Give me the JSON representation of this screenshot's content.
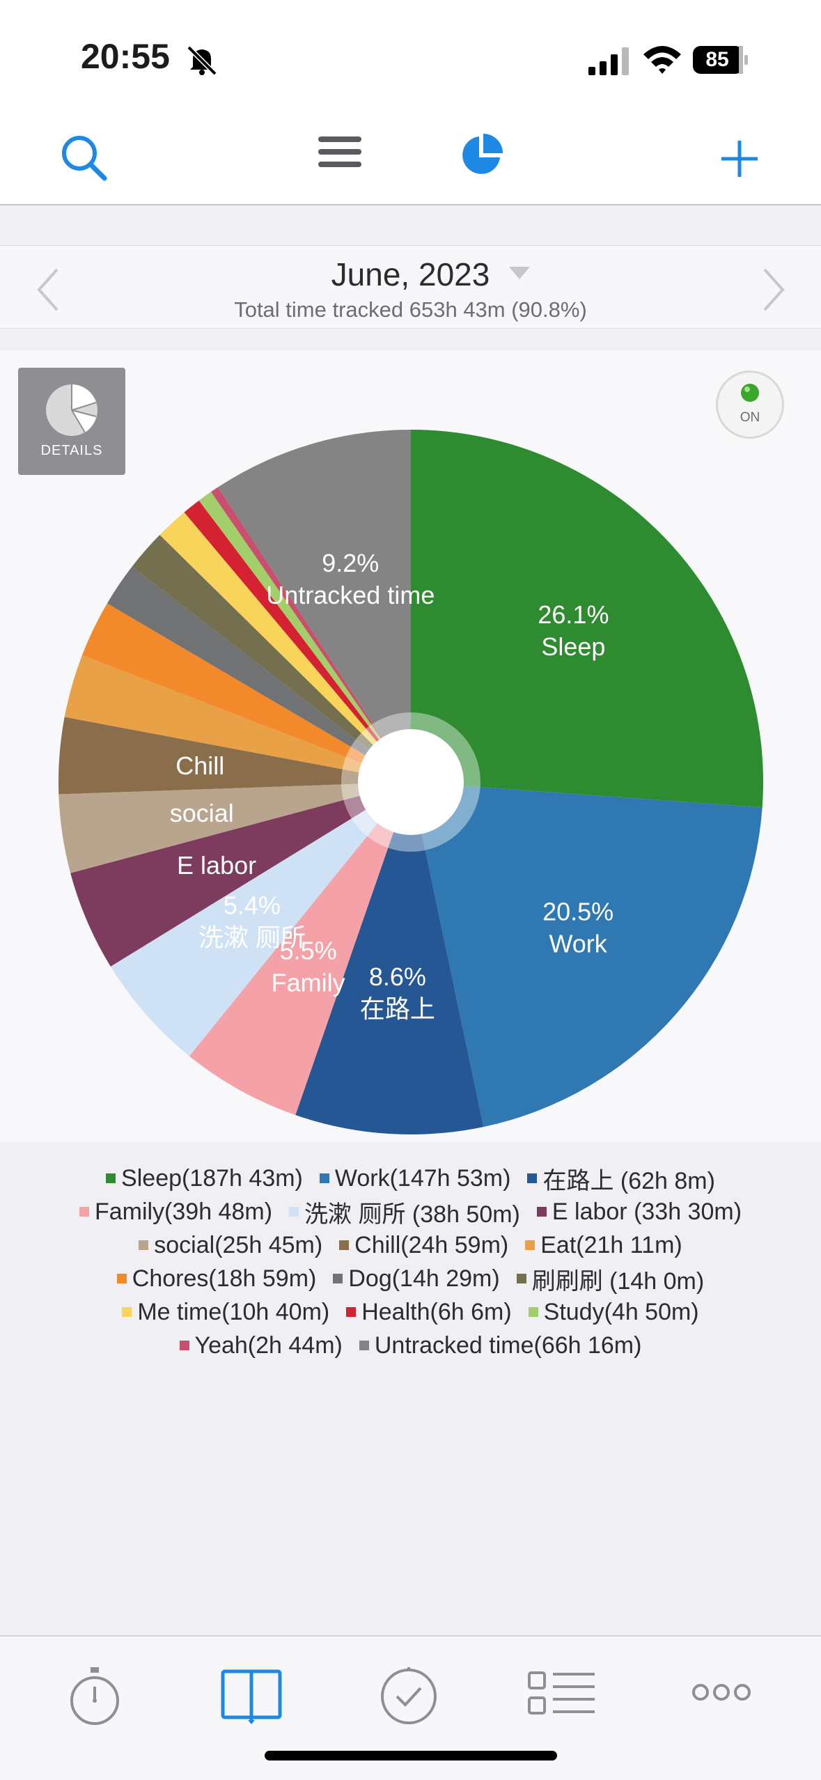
{
  "status_bar": {
    "time": "20:55",
    "battery": "85"
  },
  "header": {
    "month": "June, 2023",
    "total": "Total time tracked 653h 43m (90.8%)"
  },
  "chart_controls": {
    "details_label": "DETAILS",
    "toggle_label": "ON"
  },
  "chart_data": {
    "type": "pie",
    "slices": [
      {
        "name": "Sleep",
        "duration": "187h 43m",
        "value": 26.1,
        "color": "#2e8b30",
        "label": "26.1%\nSleep"
      },
      {
        "name": "Work",
        "duration": "147h 53m",
        "value": 20.5,
        "color": "#2f78b1",
        "label": "20.5%\nWork"
      },
      {
        "name": "在路上",
        "duration": "62h 8m",
        "value": 8.6,
        "color": "#245794",
        "label": "8.6%\n在路上"
      },
      {
        "name": "Family",
        "duration": "39h 48m",
        "value": 5.5,
        "color": "#f4a2a8",
        "label": "5.5%\nFamily"
      },
      {
        "name": "洗漱 厕所",
        "duration": "38h 50m",
        "value": 5.4,
        "color": "#cfe1f5",
        "label": "5.4%\n洗漱 厕所"
      },
      {
        "name": "E labor",
        "duration": "33h 30m",
        "value": 4.6,
        "color": "#7d3b5e",
        "label": "E labor"
      },
      {
        "name": "social",
        "duration": "25h 45m",
        "value": 3.6,
        "color": "#b9a58d",
        "label": "social"
      },
      {
        "name": "Chill",
        "duration": "24h 59m",
        "value": 3.5,
        "color": "#8a6d4b",
        "label": "Chill"
      },
      {
        "name": "Eat",
        "duration": "21h 11m",
        "value": 2.9,
        "color": "#e8a146",
        "label": ""
      },
      {
        "name": "Chores",
        "duration": "18h 59m",
        "value": 2.6,
        "color": "#f2892a",
        "label": ""
      },
      {
        "name": "Dog",
        "duration": "14h 29m",
        "value": 2.0,
        "color": "#707274",
        "label": ""
      },
      {
        "name": "刷刷刷",
        "duration": "14h 0m",
        "value": 1.9,
        "color": "#74704f",
        "label": ""
      },
      {
        "name": "Me time",
        "duration": "10h 40m",
        "value": 1.5,
        "color": "#f8d45a",
        "label": ""
      },
      {
        "name": "Health",
        "duration": "6h 6m",
        "value": 0.85,
        "color": "#d42232",
        "label": ""
      },
      {
        "name": "Study",
        "duration": "4h 50m",
        "value": 0.67,
        "color": "#a3cf6a",
        "label": ""
      },
      {
        "name": "Yeah",
        "duration": "2h 44m",
        "value": 0.38,
        "color": "#c94f6e",
        "label": ""
      },
      {
        "name": "Untracked time",
        "duration": "66h 16m",
        "value": 9.2,
        "color": "#848484",
        "label": "9.2%\nUntracked time"
      }
    ]
  },
  "legend_rows": [
    [
      {
        "text": "Sleep(187h 43m)",
        "color": "#2e8b30"
      },
      {
        "text": "Work(147h 53m)",
        "color": "#2f78b1"
      },
      {
        "text": "在路上 (62h 8m)",
        "color": "#245794"
      }
    ],
    [
      {
        "text": "Family(39h 48m)",
        "color": "#f4a2a8"
      },
      {
        "text": "洗漱 厕所 (38h 50m)",
        "color": "#cfe1f5"
      },
      {
        "text": "E labor (33h 30m)",
        "color": "#7d3b5e"
      }
    ],
    [
      {
        "text": "social(25h 45m)",
        "color": "#b9a58d"
      },
      {
        "text": "Chill(24h 59m)",
        "color": "#8a6d4b"
      },
      {
        "text": "Eat(21h 11m)",
        "color": "#e8a146"
      }
    ],
    [
      {
        "text": "Chores(18h 59m)",
        "color": "#f2892a"
      },
      {
        "text": "Dog(14h 29m)",
        "color": "#707274"
      },
      {
        "text": "刷刷刷 (14h 0m)",
        "color": "#74704f"
      }
    ],
    [
      {
        "text": "Me time(10h 40m)",
        "color": "#f8d45a"
      },
      {
        "text": "Health(6h 6m)",
        "color": "#d42232"
      },
      {
        "text": "Study(4h 50m)",
        "color": "#a3cf6a"
      }
    ],
    [
      {
        "text": "Yeah(2h 44m)",
        "color": "#c94f6e"
      },
      {
        "text": "Untracked time(66h 16m)",
        "color": "#848484"
      }
    ]
  ],
  "colors": {
    "accent": "#1e88e5",
    "tab_active": "#1e88e5",
    "tab_inactive": "#8e8e93"
  }
}
